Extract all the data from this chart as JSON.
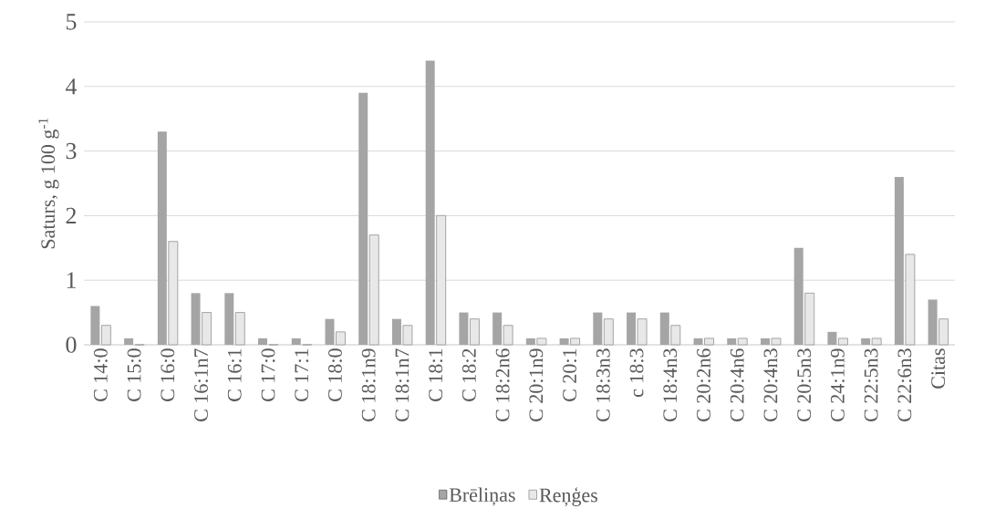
{
  "chart_data": {
    "type": "bar",
    "ylabel": "Saturs, g 100 g$^{-1}$",
    "categories": [
      "C 14:0",
      "C 15:0",
      "C 16:0",
      "C 16:1n7",
      "C 16:1",
      "C 17:0",
      "C 17:1",
      "C 18:0",
      "C 18:1n9",
      "C 18:1n7",
      "C 18:1",
      "C 18:2",
      "C 18:2n6",
      "C 20:1n9",
      "C 20:1",
      "C 18:3n3",
      "c 18:3",
      "C 18:4n3",
      "C 20:2n6",
      "C 20:4n6",
      "C 20:4n3",
      "C 20:5n3",
      "C 24:1n9",
      "C 22:5n3",
      "C 22:6n3",
      "Citas"
    ],
    "series": [
      {
        "name": "Brēliņas",
        "color": "#a5a5a5",
        "values": [
          0.6,
          0.1,
          3.3,
          0.8,
          0.8,
          0.1,
          0.1,
          0.4,
          3.9,
          0.4,
          4.4,
          0.5,
          0.5,
          0.1,
          0.1,
          0.5,
          0.5,
          0.5,
          0.1,
          0.1,
          0.1,
          1.5,
          0.2,
          0.1,
          2.6,
          0.7
        ]
      },
      {
        "name": "Reņģes",
        "color": "#a5a5a5",
        "values": [
          0.3,
          0,
          1.6,
          0.5,
          0.5,
          0,
          0,
          0.2,
          1.7,
          0.3,
          2.0,
          0.4,
          0.3,
          0.1,
          0.1,
          0.4,
          0.4,
          0.3,
          0.1,
          0.1,
          0.1,
          0.8,
          0.1,
          0.1,
          1.4,
          0.4
        ]
      }
    ],
    "ylim": [
      0,
      5
    ],
    "yticks": [
      0,
      1,
      2,
      3,
      4,
      5
    ],
    "grid": "y",
    "legend": "bottom"
  }
}
